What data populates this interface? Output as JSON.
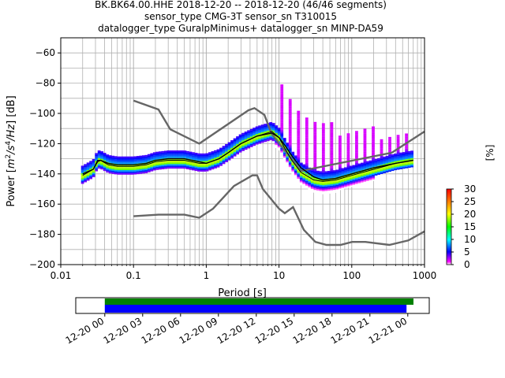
{
  "chart_data": [
    {
      "type": "heatmap",
      "title_lines": [
        "BK.BK64.00.HHE   2018-12-20 -- 2018-12-20  (46/46 segments)",
        "sensor_type CMG-3T sensor_sn T310015",
        "datalogger_type GuralpMinimus+ datalogger_sn MINP-DA59"
      ],
      "xlabel": "Period [s]",
      "ylabel_main": "Power [",
      "ylabel_unit_m": "m",
      "ylabel_unit_sup2": "2",
      "ylabel_unit_s": "/s",
      "ylabel_unit_sup4": "4",
      "ylabel_unit_hz": "/Hz",
      "ylabel_tail": "] [dB]",
      "x_scale": "log",
      "xlim": [
        0.01,
        1000
      ],
      "ylim": [
        -200,
        -50
      ],
      "x_ticks": [
        {
          "value": 0.01,
          "label": "0.01"
        },
        {
          "value": 0.1,
          "label": "0.1"
        },
        {
          "value": 1,
          "label": "1"
        },
        {
          "value": 10,
          "label": "10"
        },
        {
          "value": 100,
          "label": "100"
        },
        {
          "value": 1000,
          "label": "1000"
        }
      ],
      "y_ticks": [
        {
          "value": -200,
          "label": "−200"
        },
        {
          "value": -180,
          "label": "−180"
        },
        {
          "value": -160,
          "label": "−160"
        },
        {
          "value": -140,
          "label": "−140"
        },
        {
          "value": -120,
          "label": "−120"
        },
        {
          "value": -100,
          "label": "−100"
        },
        {
          "value": -80,
          "label": "−80"
        },
        {
          "value": -60,
          "label": "−60"
        }
      ],
      "grid": true,
      "nhnm": [
        [
          0.1,
          -168
        ],
        [
          0.22,
          -167
        ],
        [
          0.32,
          -167
        ],
        [
          0.5,
          -167
        ],
        [
          0.8,
          -169
        ],
        [
          1.24,
          -163
        ],
        [
          2.4,
          -148
        ],
        [
          4.3,
          -141
        ],
        [
          5.0,
          -141
        ],
        [
          6.0,
          -150
        ],
        [
          10,
          -163
        ],
        [
          12,
          -166
        ],
        [
          15.6,
          -162
        ],
        [
          21.9,
          -177
        ],
        [
          31.6,
          -185
        ],
        [
          45,
          -187
        ],
        [
          70,
          -187
        ],
        [
          101,
          -185
        ],
        [
          154,
          -185
        ],
        [
          328,
          -187
        ],
        [
          600,
          -184
        ],
        [
          1000,
          -178
        ]
      ],
      "nlnm": [
        [
          0.1,
          -91.5
        ],
        [
          0.22,
          -97.4
        ],
        [
          0.32,
          -110.5
        ],
        [
          0.8,
          -120
        ],
        [
          3.8,
          -97.9
        ],
        [
          4.6,
          -96.5
        ],
        [
          6.3,
          -101
        ],
        [
          7.9,
          -113.5
        ],
        [
          15.4,
          -131
        ],
        [
          20,
          -138
        ],
        [
          354.8,
          -126
        ],
        [
          1000,
          -112
        ]
      ],
      "mean_curve": [
        [
          0.02,
          -140
        ],
        [
          0.028,
          -137
        ],
        [
          0.032,
          -132
        ],
        [
          0.035,
          -131
        ],
        [
          0.045,
          -133
        ],
        [
          0.06,
          -134
        ],
        [
          0.1,
          -134
        ],
        [
          0.15,
          -133
        ],
        [
          0.2,
          -131
        ],
        [
          0.3,
          -130
        ],
        [
          0.5,
          -130
        ],
        [
          0.8,
          -132
        ],
        [
          1.0,
          -133
        ],
        [
          1.5,
          -130
        ],
        [
          2,
          -126
        ],
        [
          3,
          -120
        ],
        [
          5,
          -115
        ],
        [
          8,
          -113
        ],
        [
          10,
          -116
        ],
        [
          12,
          -121
        ],
        [
          15,
          -128
        ],
        [
          20,
          -136
        ],
        [
          30,
          -142
        ],
        [
          40,
          -144
        ],
        [
          60,
          -143
        ],
        [
          100,
          -140
        ],
        [
          200,
          -136
        ],
        [
          400,
          -133
        ],
        [
          700,
          -131
        ]
      ],
      "mode_curve": [
        [
          0.02,
          -141
        ],
        [
          0.028,
          -137
        ],
        [
          0.032,
          -131
        ],
        [
          0.035,
          -131
        ],
        [
          0.045,
          -134
        ],
        [
          0.06,
          -135
        ],
        [
          0.1,
          -135
        ],
        [
          0.15,
          -134
        ],
        [
          0.2,
          -132
        ],
        [
          0.3,
          -131
        ],
        [
          0.5,
          -131
        ],
        [
          0.8,
          -133
        ],
        [
          1.0,
          -133
        ],
        [
          1.5,
          -130
        ],
        [
          2,
          -126
        ],
        [
          3,
          -120
        ],
        [
          5,
          -115
        ],
        [
          8,
          -112
        ],
        [
          10,
          -116
        ],
        [
          12,
          -123
        ],
        [
          15,
          -131
        ],
        [
          20,
          -139
        ],
        [
          30,
          -144
        ],
        [
          40,
          -145
        ],
        [
          60,
          -144
        ],
        [
          100,
          -141
        ],
        [
          200,
          -137
        ],
        [
          400,
          -133
        ],
        [
          700,
          -131
        ]
      ],
      "colorbar": {
        "label": "[%]",
        "min": 0,
        "max": 30,
        "ticks": [
          {
            "value": 0,
            "label": "0"
          },
          {
            "value": 5,
            "label": "5"
          },
          {
            "value": 10,
            "label": "10"
          },
          {
            "value": 15,
            "label": "15"
          },
          {
            "value": 20,
            "label": "20"
          },
          {
            "value": 25,
            "label": "25"
          },
          {
            "value": 30,
            "label": "30"
          }
        ]
      }
    },
    {
      "type": "timeline",
      "x_ticks": [
        "12-20 00",
        "12-20 03",
        "12-20 06",
        "12-20 09",
        "12-20 12",
        "12-20 15",
        "12-20 18",
        "12-20 21",
        "12-21 00"
      ],
      "x_range_hours": [
        -2.3,
        25.7
      ],
      "bars": [
        {
          "color": "#008000",
          "start_hours": 0,
          "end_hours": 24.45
        },
        {
          "color": "#0000ff",
          "start_hours": 0,
          "end_hours": 23.9
        }
      ]
    }
  ]
}
